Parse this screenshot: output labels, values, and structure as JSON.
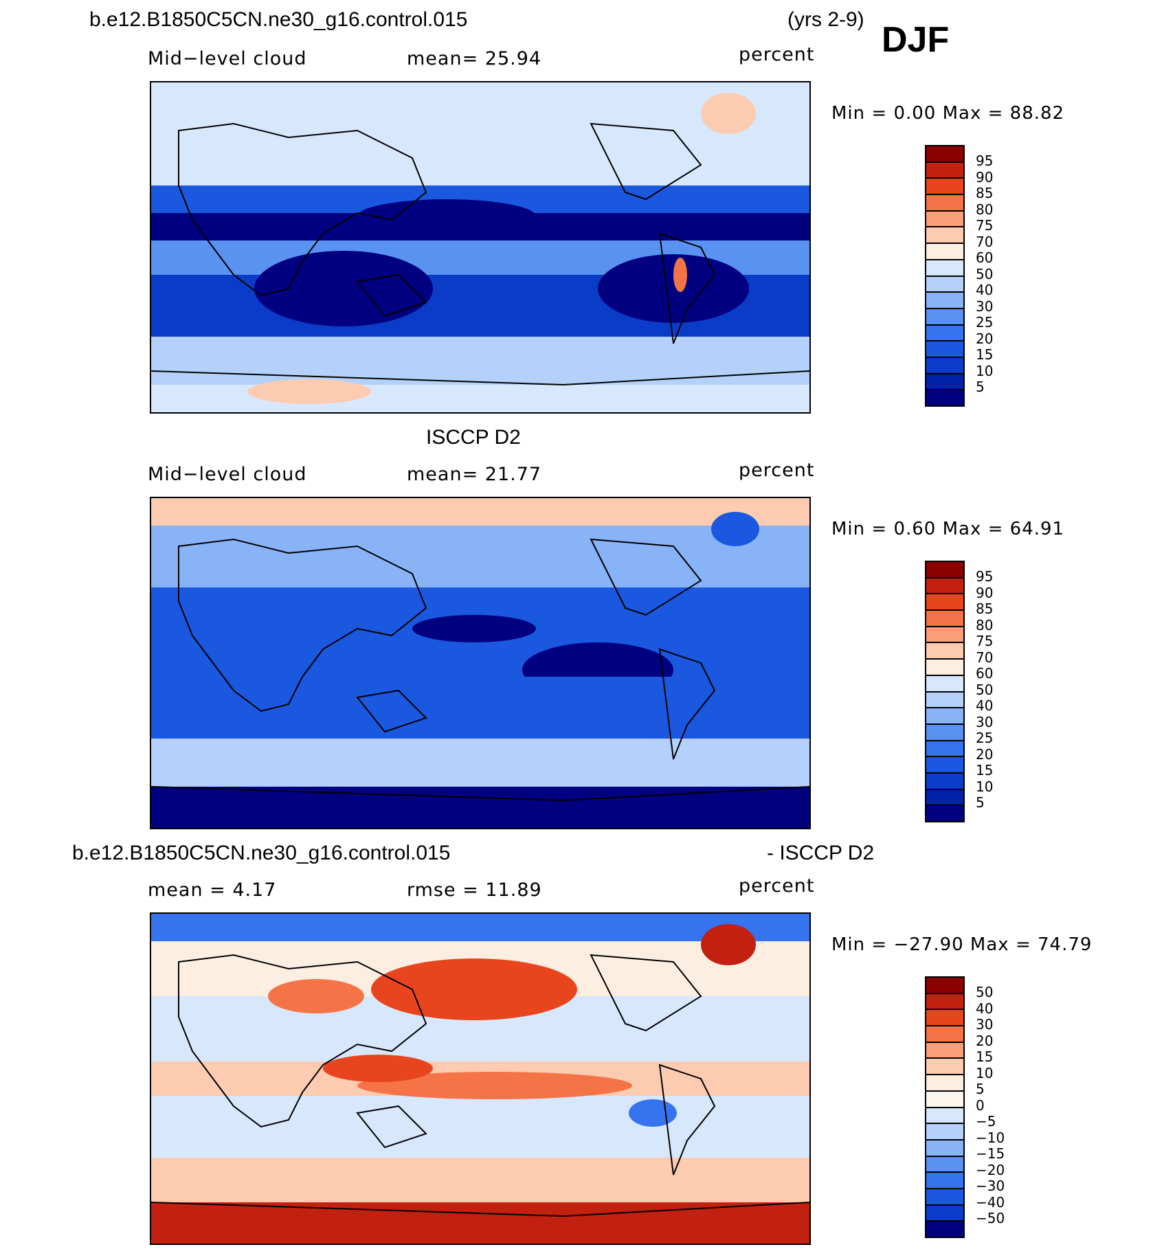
{
  "header": {
    "case_title": "b.e12.B1850C5CN.ne30_g16.control.015",
    "years": "(yrs 2-9)",
    "season": "DJF"
  },
  "palettes": {
    "cloud": [
      "#000080",
      "#0022a8",
      "#0a3cc8",
      "#1a58e0",
      "#3574ee",
      "#5a92f2",
      "#88b3f7",
      "#b5d1fb",
      "#d7e8fd",
      "#fcefe2",
      "#fccbb0",
      "#f99f7a",
      "#f57447",
      "#e8451f",
      "#c22010",
      "#8c0000"
    ],
    "diff": [
      "#000080",
      "#0022a8",
      "#0a3cc8",
      "#1a58e0",
      "#3574ee",
      "#5a92f2",
      "#88b3f7",
      "#b5d1fb",
      "#d7e8fd",
      "#fcefe2",
      "#fccbb0",
      "#f99f7a",
      "#f57447",
      "#e8451f",
      "#c22010",
      "#8c0000"
    ]
  },
  "panels": [
    {
      "heading": "",
      "left_label": "Mid−level cloud",
      "mid_label": "mean=   25.94",
      "units": "percent",
      "minmax": "Min =     0.00 Max =    88.82",
      "colorbar_labels": [
        "95",
        "90",
        "85",
        "80",
        "75",
        "70",
        "60",
        "50",
        "40",
        "30",
        "25",
        "20",
        "15",
        "10",
        "5"
      ]
    },
    {
      "heading": "ISCCP D2",
      "left_label": "Mid−level cloud",
      "mid_label": "mean=   21.77",
      "units": "percent",
      "minmax": "Min =     0.60 Max =    64.91",
      "colorbar_labels": [
        "95",
        "90",
        "85",
        "80",
        "75",
        "70",
        "60",
        "50",
        "40",
        "30",
        "25",
        "20",
        "15",
        "10",
        "5"
      ]
    },
    {
      "heading": "b.e12.B1850C5CN.ne30_g16.control.015",
      "heading_right": "- ISCCP D2",
      "left_label": "mean =    4.17",
      "mid_label": "rmse =    11.89",
      "units": "percent",
      "minmax": "Min = −27.90 Max =    74.79",
      "colorbar_labels": [
        "50",
        "40",
        "30",
        "20",
        "15",
        "10",
        "5",
        "0",
        "−5",
        "−10",
        "−15",
        "−20",
        "−30",
        "−40",
        "−50"
      ]
    }
  ]
}
